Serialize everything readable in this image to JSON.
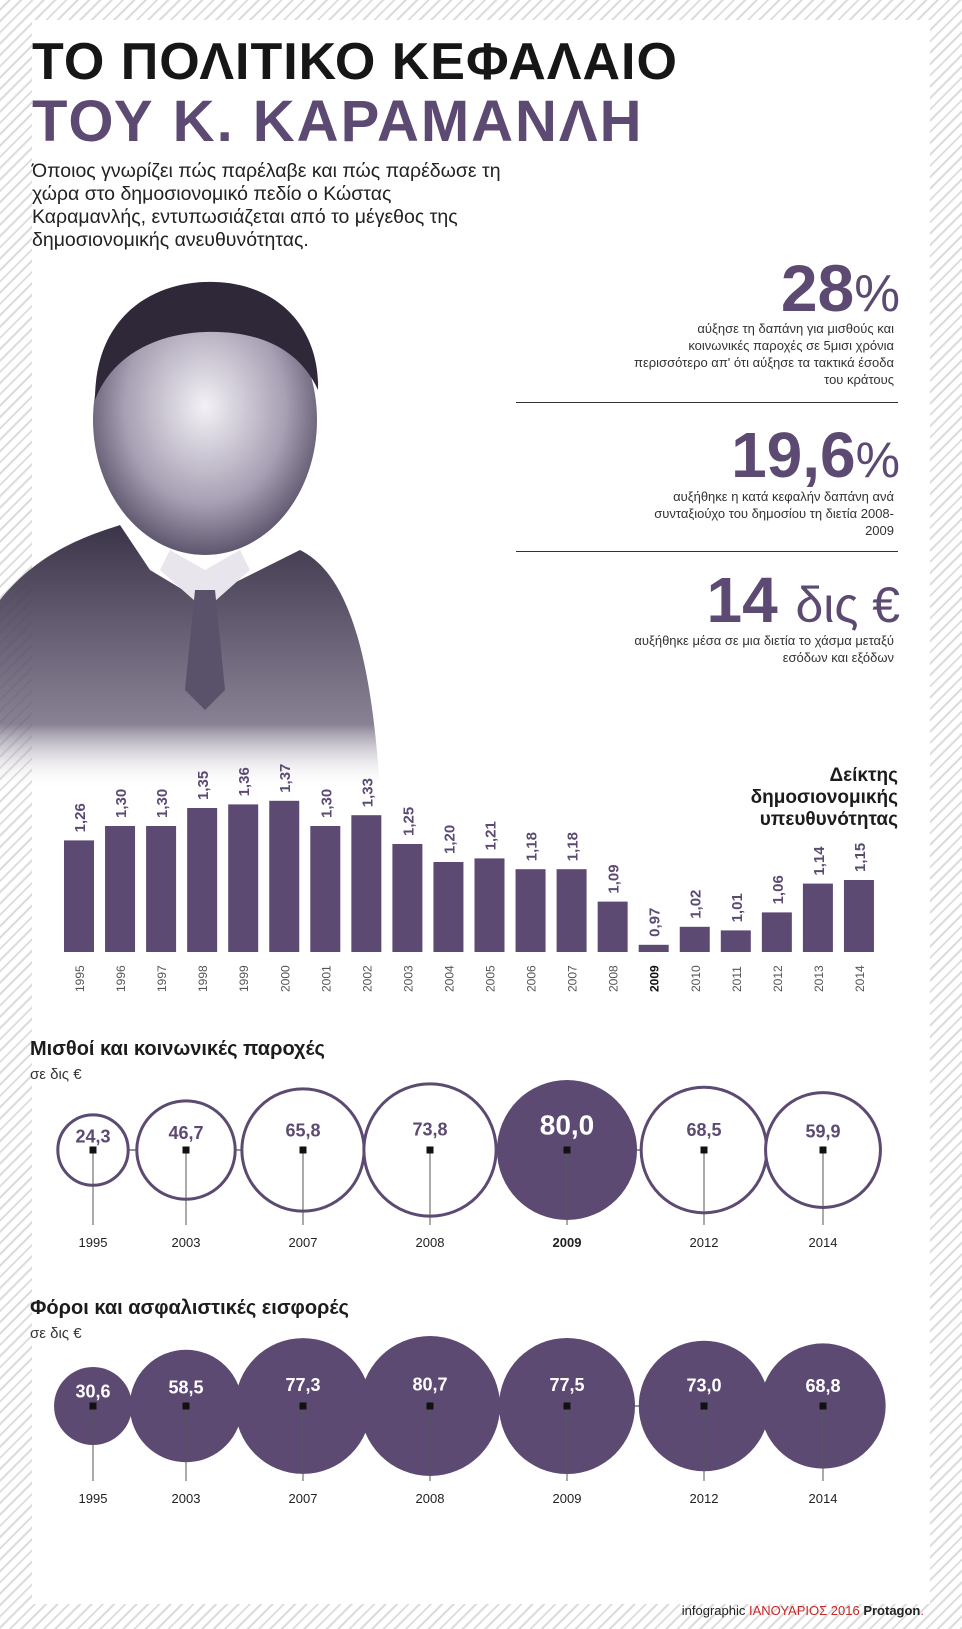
{
  "header": {
    "title_line1": "ΤΟ ΠΟΛΙΤΙΚΟ ΚΕΦΑΛΑΙΟ",
    "title_line2": "ΤΟΥ Κ. ΚΑΡΑΜΑΝΛΗ",
    "intro": "Όποιος γνωρίζει πώς παρέλαβε και πώς παρέδωσε τη χώρα στο δημοσιονομικό πεδίο ο Κώστας Καραμανλής, εντυπωσιάζεται από το μέγεθος της δημοσιονομικής ανευθυνότητας."
  },
  "stats": [
    {
      "number": "28",
      "symbol": "%",
      "description": "αύξησε τη δαπάνη για μισθούς και κοινωνικές παροχές σε 5μισι χρόνια περισσότερο απ' ότι αύξησε τα τακτικά έσοδα του κράτους"
    },
    {
      "number": "19,6",
      "symbol": "%",
      "description": "αυξήθηκε η κατά κεφαλήν δαπάνη ανά συνταξιούχο του δημοσίου τη διετία 2008-2009"
    },
    {
      "number": "14",
      "symbol": "δις €",
      "description": "αυξήθηκε μέσα σε μια διετία το χάσμα μεταξύ εσόδων και εξόδων"
    }
  ],
  "colors": {
    "accent": "#5c4a72",
    "dark": "#161616",
    "footer_red": "#c62828"
  },
  "chart_data": [
    {
      "type": "bar",
      "title": "Δείκτης δημοσιονομικής υπευθυνότητας",
      "categories": [
        "1995",
        "1996",
        "1997",
        "1998",
        "1999",
        "2000",
        "2001",
        "2002",
        "2003",
        "2004",
        "2005",
        "2006",
        "2007",
        "2008",
        "2009",
        "2010",
        "2011",
        "2012",
        "2013",
        "2014"
      ],
      "values": [
        1.26,
        1.3,
        1.3,
        1.35,
        1.36,
        1.37,
        1.3,
        1.33,
        1.25,
        1.2,
        1.21,
        1.18,
        1.18,
        1.09,
        0.97,
        1.02,
        1.01,
        1.06,
        1.14,
        1.15
      ],
      "value_labels": [
        "1,26",
        "1,30",
        "1,30",
        "1,35",
        "1,36",
        "1,37",
        "1,30",
        "1,33",
        "1,25",
        "1,20",
        "1,21",
        "1,18",
        "1,18",
        "1,09",
        "0,97",
        "1,02",
        "1,01",
        "1,06",
        "1,14",
        "1,15"
      ],
      "highlight": "2009",
      "ylim": [
        0.95,
        1.4
      ]
    },
    {
      "type": "bubble",
      "title": "Μισθοί και κοινωνικές παροχές",
      "subtitle": "σε δις €",
      "categories": [
        "1995",
        "2003",
        "2007",
        "2008",
        "2009",
        "2012",
        "2014"
      ],
      "values": [
        24.3,
        46.7,
        65.8,
        73.8,
        80.0,
        68.5,
        59.9
      ],
      "value_labels": [
        "24,3",
        "46,7",
        "65,8",
        "73,8",
        "80,0",
        "68,5",
        "59,9"
      ],
      "highlight": "2009",
      "style": "outline"
    },
    {
      "type": "bubble",
      "title": "Φόροι και ασφαλιστικές εισφορές",
      "subtitle": "σε δις €",
      "categories": [
        "1995",
        "2003",
        "2007",
        "2008",
        "2009",
        "2012",
        "2014"
      ],
      "values": [
        30.6,
        58.5,
        77.3,
        80.7,
        77.5,
        73.0,
        68.8
      ],
      "value_labels": [
        "30,6",
        "58,5",
        "77,3",
        "80,7",
        "77,5",
        "73,0",
        "68,8"
      ],
      "style": "filled"
    }
  ],
  "footer": {
    "prefix": "infographic",
    "month": "ΙΑΝΟΥΑΡΙΟΣ 2016",
    "brand": "Protagon",
    "dot": "."
  }
}
